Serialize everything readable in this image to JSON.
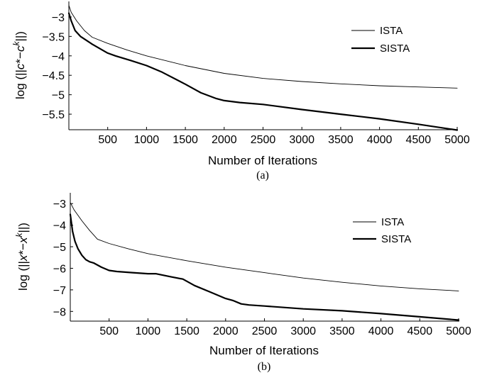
{
  "chart_data": [
    {
      "type": "line",
      "caption": "(a)",
      "xlabel": "Number of Iterations",
      "ylabel": "log (||c*−c^k||)",
      "xlim": [
        0,
        5000
      ],
      "ylim": [
        -5.9,
        -2.6
      ],
      "xticks": [
        500,
        1000,
        1500,
        2000,
        2500,
        3000,
        3500,
        4000,
        4500,
        5000
      ],
      "yticks": [
        -3,
        -3.5,
        -4,
        -4.5,
        -5,
        -5.5
      ],
      "ytick_labels": [
        "−3",
        "−3.5",
        "−4",
        "−4.5",
        "−5",
        "−5.5"
      ],
      "grid": false,
      "legend": "top-right",
      "series": [
        {
          "name": "ISTA",
          "style": "thin",
          "x": [
            0,
            30,
            100,
            200,
            300,
            500,
            750,
            1000,
            1500,
            2000,
            2500,
            3000,
            3500,
            4000,
            4500,
            5000
          ],
          "y": [
            -2.7,
            -2.88,
            -3.1,
            -3.35,
            -3.52,
            -3.68,
            -3.85,
            -4.0,
            -4.25,
            -4.45,
            -4.58,
            -4.66,
            -4.72,
            -4.77,
            -4.8,
            -4.83
          ]
        },
        {
          "name": "SISTA",
          "style": "thick",
          "x": [
            0,
            30,
            80,
            150,
            300,
            500,
            600,
            800,
            1000,
            1200,
            1500,
            1700,
            1900,
            2000,
            2200,
            2500,
            3000,
            3500,
            4000,
            4500,
            5000
          ],
          "y": [
            -2.9,
            -3.1,
            -3.35,
            -3.5,
            -3.7,
            -3.93,
            -4.0,
            -4.12,
            -4.25,
            -4.42,
            -4.73,
            -4.95,
            -5.1,
            -5.15,
            -5.2,
            -5.25,
            -5.38,
            -5.5,
            -5.62,
            -5.76,
            -5.91
          ]
        }
      ]
    },
    {
      "type": "line",
      "caption": "(b)",
      "xlabel": "Number of Iterations",
      "ylabel": "log (||x*−x^k||)",
      "xlim": [
        0,
        5000
      ],
      "ylim": [
        -8.45,
        -2.5
      ],
      "xticks": [
        500,
        1000,
        1500,
        2000,
        2500,
        3000,
        3500,
        4000,
        4500,
        5000
      ],
      "yticks": [
        -3,
        -4,
        -5,
        -6,
        -7,
        -8
      ],
      "ytick_labels": [
        "−3",
        "−4",
        "−5",
        "−6",
        "−7",
        "−8"
      ],
      "grid": false,
      "legend": "top-right",
      "series": [
        {
          "name": "ISTA",
          "style": "thin",
          "x": [
            0,
            50,
            150,
            250,
            350,
            500,
            750,
            1000,
            1500,
            2000,
            2500,
            3000,
            3500,
            4000,
            4500,
            5000
          ],
          "y": [
            -2.95,
            -3.3,
            -3.8,
            -4.25,
            -4.65,
            -4.85,
            -5.1,
            -5.32,
            -5.65,
            -5.95,
            -6.2,
            -6.45,
            -6.65,
            -6.82,
            -6.95,
            -7.05
          ]
        },
        {
          "name": "SISTA",
          "style": "thick",
          "x": [
            0,
            30,
            60,
            100,
            150,
            200,
            250,
            300,
            350,
            400,
            500,
            600,
            800,
            1000,
            1100,
            1300,
            1450,
            1600,
            1800,
            2000,
            2100,
            2200,
            2300,
            2500,
            3000,
            3500,
            4000,
            4500,
            5000
          ],
          "y": [
            -3.5,
            -4.3,
            -4.75,
            -5.1,
            -5.4,
            -5.6,
            -5.7,
            -5.75,
            -5.85,
            -5.95,
            -6.1,
            -6.15,
            -6.2,
            -6.25,
            -6.25,
            -6.4,
            -6.5,
            -6.8,
            -7.1,
            -7.4,
            -7.5,
            -7.65,
            -7.7,
            -7.75,
            -7.88,
            -7.97,
            -8.1,
            -8.25,
            -8.4
          ]
        }
      ]
    }
  ]
}
